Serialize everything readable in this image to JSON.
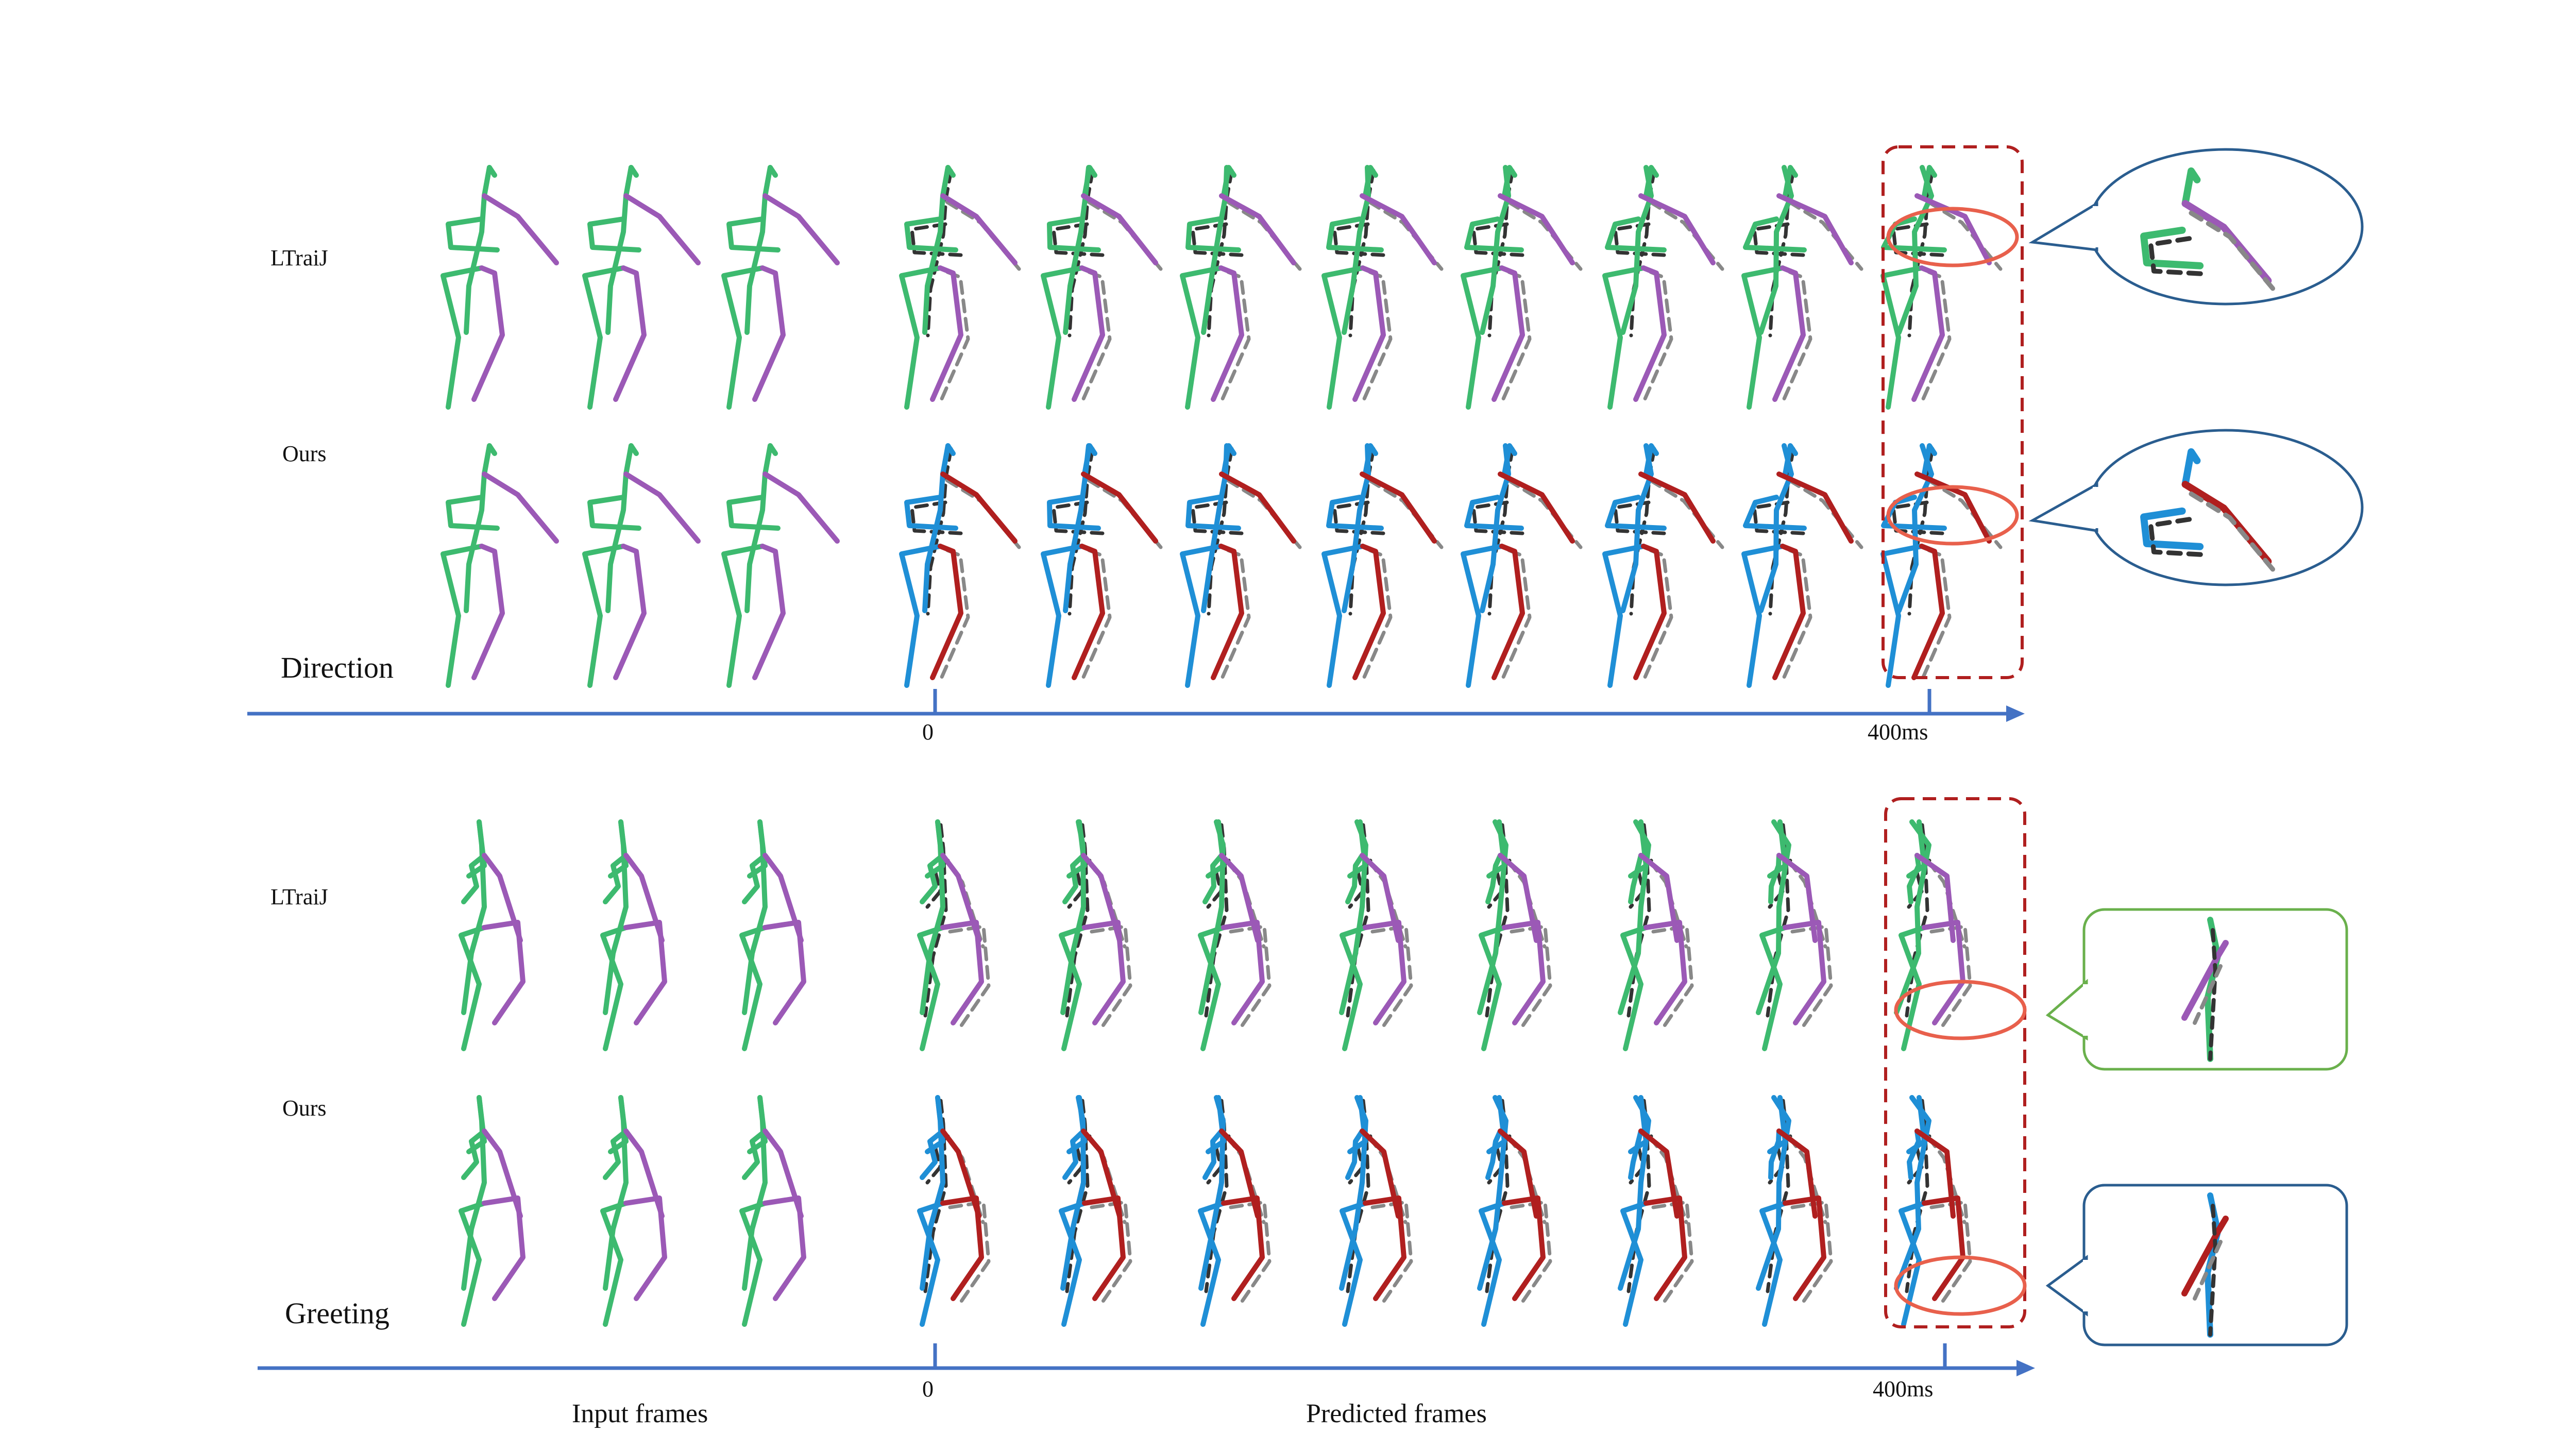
{
  "top_section": {
    "action_label": "Direction",
    "row1_method": "LTraiJ",
    "row2_method": "Ours",
    "axis_start_label": "0",
    "axis_end_label": "400ms"
  },
  "bottom_section": {
    "action_label": "Greeting",
    "row1_method": "LTraiJ",
    "row2_method": "Ours",
    "axis_start_label": "0",
    "axis_end_label": "400ms"
  },
  "footer": {
    "input_label": "Input  frames",
    "predicted_label": "Predicted frames"
  },
  "colors": {
    "input_left": "#3dba6f",
    "input_right": "#9b59b6",
    "ltraij_left": "#3dba6f",
    "ltraij_right": "#9b59b6",
    "ours_left": "#1f8fd6",
    "ours_right": "#b01f1f",
    "ground_truth": "#333333",
    "axis": "#4472c4",
    "highlight_box": "#b01f1f",
    "highlight_ellipse": "#e8604c",
    "zoom_blue_border": "#2a5d8f",
    "zoom_green_border": "#6ab04c"
  },
  "icons": {
    "skeleton": "stick-figure-skeleton",
    "axis_arrow": "arrow-right-icon"
  }
}
